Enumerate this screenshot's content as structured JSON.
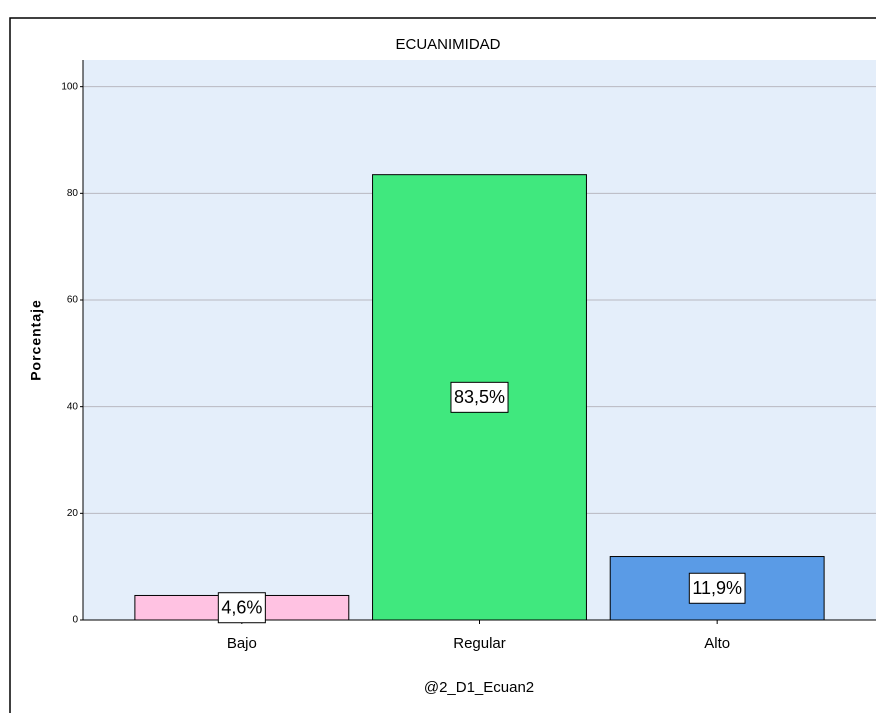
{
  "chart_data": {
    "type": "bar",
    "title": "ECUANIMIDAD",
    "x_label": "@2_D1_Ecuan2",
    "y_label": "Porcentaje",
    "categories": [
      "Bajo",
      "Regular",
      "Alto"
    ],
    "values": [
      4.6,
      83.5,
      11.9
    ],
    "value_labels": [
      "4,6%",
      "83,5%",
      "11,9%"
    ],
    "colors": [
      "#ffc2e2",
      "#40e87e",
      "#5a9be6"
    ],
    "ylim": [
      0,
      105
    ],
    "yticks": [
      0,
      20,
      40,
      60,
      80,
      100
    ],
    "grid": true
  }
}
